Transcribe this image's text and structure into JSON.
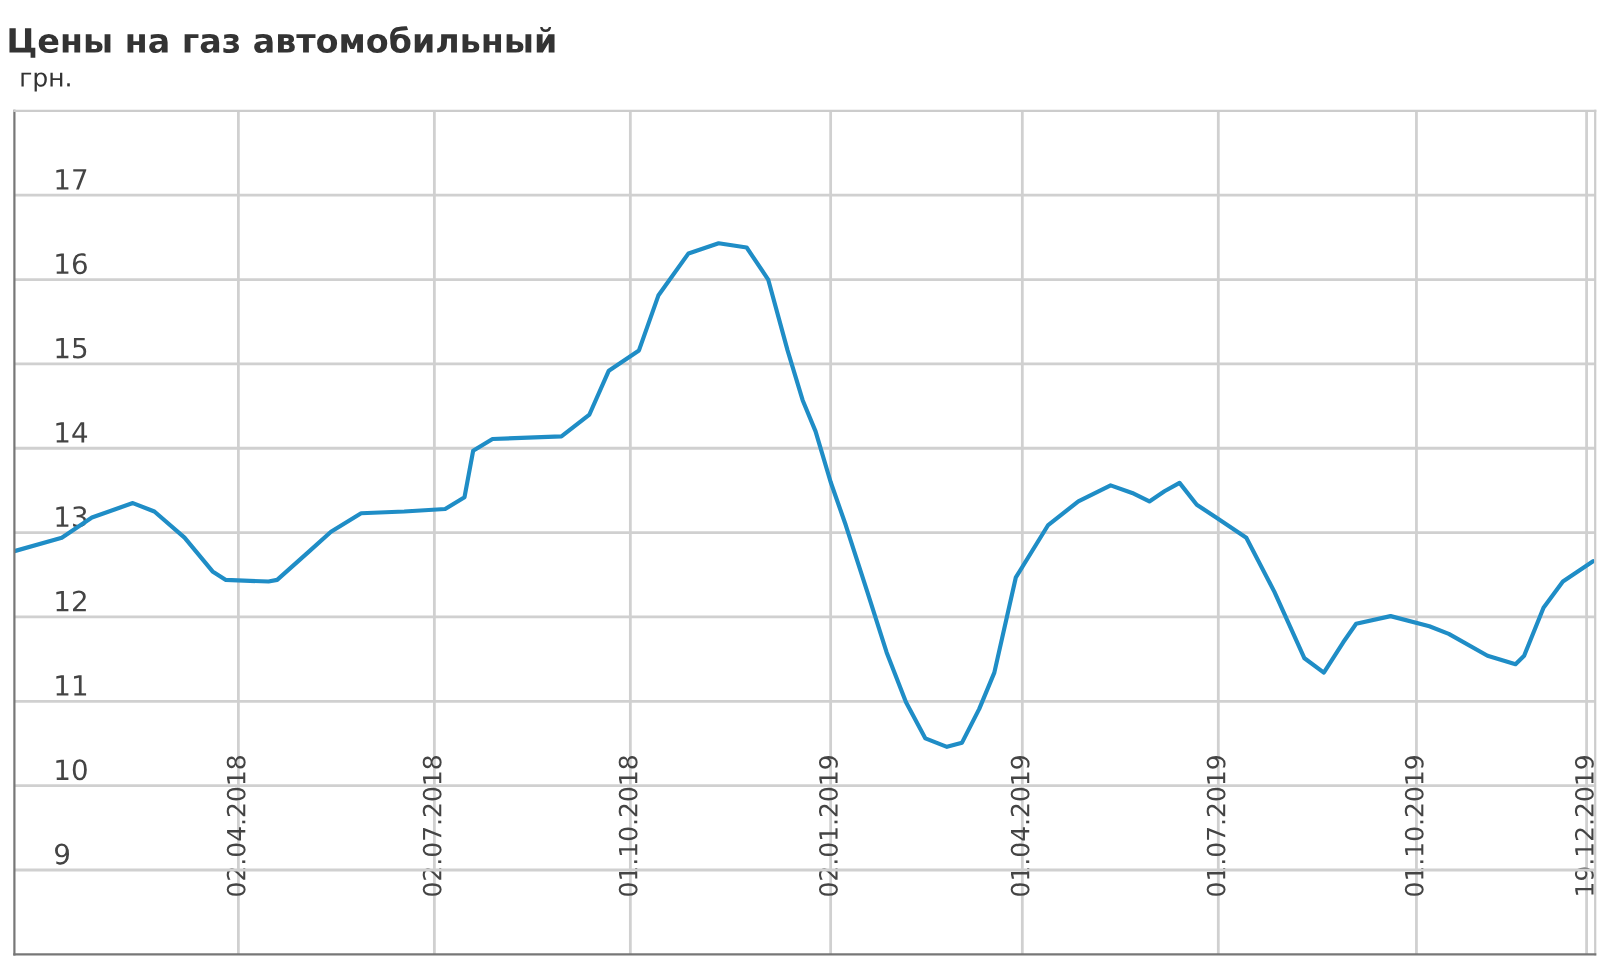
{
  "chart_data": {
    "type": "line",
    "title": "Цены на газ автомобильный",
    "ylabel": "грн.",
    "x": [
      "2017-12-19",
      "2018-01-10",
      "2018-01-24",
      "2018-02-12",
      "2018-02-22",
      "2018-03-08",
      "2018-03-21",
      "2018-03-27",
      "2018-04-16",
      "2018-04-20",
      "2018-05-05",
      "2018-05-15",
      "2018-05-29",
      "2018-06-18",
      "2018-07-07",
      "2018-07-16",
      "2018-07-20",
      "2018-07-29",
      "2018-08-30",
      "2018-09-12",
      "2018-09-21",
      "2018-10-05",
      "2018-10-14",
      "2018-10-28",
      "2018-11-11",
      "2018-11-24",
      "2018-12-04",
      "2018-12-13",
      "2018-12-20",
      "2018-12-26",
      "2019-01-02",
      "2019-01-09",
      "2019-01-19",
      "2019-01-28",
      "2019-02-06",
      "2019-02-15",
      "2019-02-25",
      "2019-03-04",
      "2019-03-12",
      "2019-03-19",
      "2019-03-29",
      "2019-04-13",
      "2019-04-27",
      "2019-05-12",
      "2019-05-22",
      "2019-05-30",
      "2019-06-06",
      "2019-06-13",
      "2019-06-21",
      "2019-06-30",
      "2019-07-14",
      "2019-07-27",
      "2019-08-10",
      "2019-08-19",
      "2019-08-28",
      "2019-09-03",
      "2019-09-19",
      "2019-10-07",
      "2019-10-16",
      "2019-11-03",
      "2019-11-16",
      "2019-11-20",
      "2019-11-29",
      "2019-12-08",
      "2019-12-22"
    ],
    "series": [
      {
        "color": "#1f8dc6",
        "values": [
          12.78,
          12.94,
          13.18,
          13.35,
          13.25,
          12.94,
          12.54,
          12.44,
          12.42,
          12.44,
          12.78,
          13.01,
          13.23,
          13.25,
          13.28,
          13.42,
          13.97,
          14.11,
          14.14,
          14.4,
          14.92,
          15.16,
          15.81,
          16.31,
          16.43,
          16.38,
          16.0,
          15.16,
          14.57,
          14.2,
          13.6,
          13.09,
          12.3,
          11.58,
          10.99,
          10.56,
          10.46,
          10.51,
          10.91,
          11.34,
          12.47,
          13.09,
          13.37,
          13.56,
          13.47,
          13.37,
          13.49,
          13.59,
          13.33,
          13.18,
          12.94,
          12.3,
          11.51,
          11.34,
          11.7,
          11.92,
          12.01,
          11.89,
          11.8,
          11.54,
          11.44,
          11.54,
          12.11,
          12.42,
          12.66
        ]
      }
    ],
    "xlim": [
      "2017-12-19",
      "2019-12-23"
    ],
    "xticks": [
      {
        "value": "2018-04-02",
        "label": "02.04.2018"
      },
      {
        "value": "2018-07-02",
        "label": "02.07.2018"
      },
      {
        "value": "2018-10-01",
        "label": "01.10.2018"
      },
      {
        "value": "2019-01-02",
        "label": "02.01.2019"
      },
      {
        "value": "2019-04-01",
        "label": "01.04.2019"
      },
      {
        "value": "2019-07-01",
        "label": "01.07.2019"
      },
      {
        "value": "2019-10-01",
        "label": "01.10.2019"
      },
      {
        "value": "2019-12-19",
        "label": "19.12.2019"
      }
    ],
    "ylim": [
      8,
      18
    ],
    "yticks": [
      9,
      10,
      11,
      12,
      13,
      14,
      15,
      16,
      17
    ],
    "grid": true,
    "legend": false,
    "line_style": "solid",
    "marker": "none"
  }
}
